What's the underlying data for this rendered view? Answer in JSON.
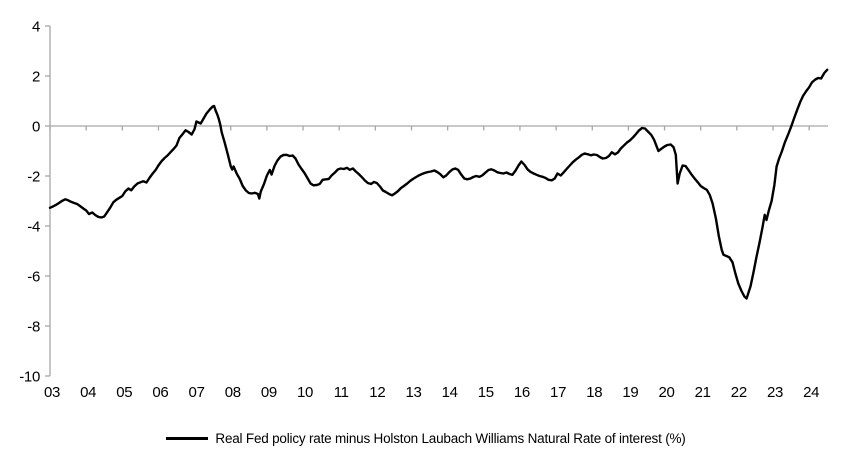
{
  "chart_data": {
    "type": "line",
    "title": "",
    "legend_label": "Real Fed policy rate minus Holston Laubach Williams Natural Rate of interest (%)",
    "legend_position": "bottom-center",
    "grid": false,
    "axis_color": "#a6a6a6",
    "line_color": "#000000",
    "text_color": "#000000",
    "x_axis": {
      "tick_labels": [
        "03",
        "04",
        "05",
        "06",
        "07",
        "08",
        "09",
        "10",
        "11",
        "12",
        "13",
        "14",
        "15",
        "16",
        "17",
        "18",
        "19",
        "20",
        "21",
        "22",
        "23",
        "24"
      ],
      "first_year": 2003,
      "range": [
        2003,
        2024.55
      ],
      "zero_line_is_axis": true
    },
    "y_axis": {
      "ticks": [
        4,
        2,
        0,
        -2,
        -4,
        -6,
        -8,
        -10
      ],
      "range": [
        -10,
        4
      ]
    },
    "series": [
      {
        "name": "Real Fed policy rate minus Holston Laubach Williams Natural Rate of interest (%)",
        "color": "#000000",
        "points": [
          [
            2003.0,
            -3.27
          ],
          [
            2003.08,
            -3.22
          ],
          [
            2003.17,
            -3.15
          ],
          [
            2003.25,
            -3.08
          ],
          [
            2003.33,
            -3.0
          ],
          [
            2003.42,
            -2.93
          ],
          [
            2003.5,
            -2.97
          ],
          [
            2003.58,
            -3.03
          ],
          [
            2003.67,
            -3.08
          ],
          [
            2003.75,
            -3.12
          ],
          [
            2003.83,
            -3.2
          ],
          [
            2003.92,
            -3.3
          ],
          [
            2004.0,
            -3.38
          ],
          [
            2004.08,
            -3.52
          ],
          [
            2004.17,
            -3.46
          ],
          [
            2004.25,
            -3.56
          ],
          [
            2004.33,
            -3.63
          ],
          [
            2004.42,
            -3.66
          ],
          [
            2004.5,
            -3.62
          ],
          [
            2004.58,
            -3.45
          ],
          [
            2004.67,
            -3.25
          ],
          [
            2004.75,
            -3.05
          ],
          [
            2004.83,
            -2.95
          ],
          [
            2004.92,
            -2.87
          ],
          [
            2005.0,
            -2.8
          ],
          [
            2005.08,
            -2.62
          ],
          [
            2005.17,
            -2.5
          ],
          [
            2005.25,
            -2.57
          ],
          [
            2005.33,
            -2.42
          ],
          [
            2005.42,
            -2.3
          ],
          [
            2005.5,
            -2.25
          ],
          [
            2005.58,
            -2.21
          ],
          [
            2005.67,
            -2.26
          ],
          [
            2005.75,
            -2.08
          ],
          [
            2005.83,
            -1.92
          ],
          [
            2005.92,
            -1.76
          ],
          [
            2006.0,
            -1.58
          ],
          [
            2006.08,
            -1.42
          ],
          [
            2006.17,
            -1.28
          ],
          [
            2006.25,
            -1.18
          ],
          [
            2006.33,
            -1.05
          ],
          [
            2006.42,
            -0.92
          ],
          [
            2006.5,
            -0.78
          ],
          [
            2006.58,
            -0.48
          ],
          [
            2006.67,
            -0.32
          ],
          [
            2006.75,
            -0.17
          ],
          [
            2006.83,
            -0.24
          ],
          [
            2006.92,
            -0.34
          ],
          [
            2007.0,
            -0.12
          ],
          [
            2007.05,
            0.18
          ],
          [
            2007.17,
            0.1
          ],
          [
            2007.25,
            0.3
          ],
          [
            2007.33,
            0.5
          ],
          [
            2007.42,
            0.66
          ],
          [
            2007.5,
            0.78
          ],
          [
            2007.54,
            0.8
          ],
          [
            2007.58,
            0.62
          ],
          [
            2007.63,
            0.45
          ],
          [
            2007.67,
            0.28
          ],
          [
            2007.71,
            0.05
          ],
          [
            2007.75,
            -0.25
          ],
          [
            2007.83,
            -0.65
          ],
          [
            2007.92,
            -1.15
          ],
          [
            2008.0,
            -1.62
          ],
          [
            2008.04,
            -1.74
          ],
          [
            2008.08,
            -1.62
          ],
          [
            2008.17,
            -1.92
          ],
          [
            2008.25,
            -2.12
          ],
          [
            2008.33,
            -2.4
          ],
          [
            2008.42,
            -2.58
          ],
          [
            2008.5,
            -2.68
          ],
          [
            2008.58,
            -2.7
          ],
          [
            2008.67,
            -2.67
          ],
          [
            2008.75,
            -2.72
          ],
          [
            2008.79,
            -2.9
          ],
          [
            2008.83,
            -2.62
          ],
          [
            2008.92,
            -2.32
          ],
          [
            2009.0,
            -1.98
          ],
          [
            2009.08,
            -1.76
          ],
          [
            2009.13,
            -1.94
          ],
          [
            2009.21,
            -1.6
          ],
          [
            2009.29,
            -1.38
          ],
          [
            2009.38,
            -1.22
          ],
          [
            2009.46,
            -1.16
          ],
          [
            2009.54,
            -1.15
          ],
          [
            2009.63,
            -1.2
          ],
          [
            2009.71,
            -1.18
          ],
          [
            2009.79,
            -1.3
          ],
          [
            2009.88,
            -1.55
          ],
          [
            2009.96,
            -1.72
          ],
          [
            2010.04,
            -1.88
          ],
          [
            2010.13,
            -2.1
          ],
          [
            2010.21,
            -2.3
          ],
          [
            2010.29,
            -2.37
          ],
          [
            2010.38,
            -2.36
          ],
          [
            2010.46,
            -2.32
          ],
          [
            2010.54,
            -2.15
          ],
          [
            2010.63,
            -2.13
          ],
          [
            2010.71,
            -2.12
          ],
          [
            2010.79,
            -1.98
          ],
          [
            2010.88,
            -1.86
          ],
          [
            2010.96,
            -1.74
          ],
          [
            2011.04,
            -1.7
          ],
          [
            2011.13,
            -1.72
          ],
          [
            2011.21,
            -1.67
          ],
          [
            2011.29,
            -1.75
          ],
          [
            2011.38,
            -1.7
          ],
          [
            2011.46,
            -1.82
          ],
          [
            2011.54,
            -1.92
          ],
          [
            2011.63,
            -2.05
          ],
          [
            2011.71,
            -2.18
          ],
          [
            2011.79,
            -2.28
          ],
          [
            2011.88,
            -2.32
          ],
          [
            2011.96,
            -2.24
          ],
          [
            2012.04,
            -2.28
          ],
          [
            2012.13,
            -2.42
          ],
          [
            2012.21,
            -2.58
          ],
          [
            2012.29,
            -2.64
          ],
          [
            2012.38,
            -2.72
          ],
          [
            2012.46,
            -2.77
          ],
          [
            2012.54,
            -2.7
          ],
          [
            2012.63,
            -2.6
          ],
          [
            2012.71,
            -2.48
          ],
          [
            2012.79,
            -2.4
          ],
          [
            2012.88,
            -2.3
          ],
          [
            2012.96,
            -2.2
          ],
          [
            2013.04,
            -2.12
          ],
          [
            2013.13,
            -2.04
          ],
          [
            2013.21,
            -1.97
          ],
          [
            2013.29,
            -1.92
          ],
          [
            2013.38,
            -1.87
          ],
          [
            2013.46,
            -1.84
          ],
          [
            2013.54,
            -1.82
          ],
          [
            2013.63,
            -1.78
          ],
          [
            2013.71,
            -1.84
          ],
          [
            2013.79,
            -1.92
          ],
          [
            2013.88,
            -2.05
          ],
          [
            2013.96,
            -1.98
          ],
          [
            2014.04,
            -1.85
          ],
          [
            2014.13,
            -1.74
          ],
          [
            2014.21,
            -1.7
          ],
          [
            2014.29,
            -1.75
          ],
          [
            2014.38,
            -1.95
          ],
          [
            2014.46,
            -2.1
          ],
          [
            2014.54,
            -2.13
          ],
          [
            2014.63,
            -2.1
          ],
          [
            2014.71,
            -2.04
          ],
          [
            2014.79,
            -2.0
          ],
          [
            2014.88,
            -2.03
          ],
          [
            2014.96,
            -1.97
          ],
          [
            2015.04,
            -1.87
          ],
          [
            2015.13,
            -1.76
          ],
          [
            2015.21,
            -1.73
          ],
          [
            2015.29,
            -1.78
          ],
          [
            2015.38,
            -1.85
          ],
          [
            2015.46,
            -1.88
          ],
          [
            2015.54,
            -1.9
          ],
          [
            2015.63,
            -1.86
          ],
          [
            2015.71,
            -1.92
          ],
          [
            2015.79,
            -1.95
          ],
          [
            2015.88,
            -1.78
          ],
          [
            2015.96,
            -1.58
          ],
          [
            2016.04,
            -1.42
          ],
          [
            2016.13,
            -1.56
          ],
          [
            2016.21,
            -1.73
          ],
          [
            2016.29,
            -1.83
          ],
          [
            2016.38,
            -1.9
          ],
          [
            2016.46,
            -1.95
          ],
          [
            2016.54,
            -2.0
          ],
          [
            2016.63,
            -2.03
          ],
          [
            2016.71,
            -2.08
          ],
          [
            2016.79,
            -2.15
          ],
          [
            2016.88,
            -2.17
          ],
          [
            2016.96,
            -2.1
          ],
          [
            2017.04,
            -1.9
          ],
          [
            2017.13,
            -1.98
          ],
          [
            2017.21,
            -1.85
          ],
          [
            2017.29,
            -1.72
          ],
          [
            2017.38,
            -1.58
          ],
          [
            2017.46,
            -1.45
          ],
          [
            2017.54,
            -1.35
          ],
          [
            2017.63,
            -1.25
          ],
          [
            2017.71,
            -1.15
          ],
          [
            2017.79,
            -1.1
          ],
          [
            2017.88,
            -1.13
          ],
          [
            2017.96,
            -1.17
          ],
          [
            2018.04,
            -1.14
          ],
          [
            2018.13,
            -1.16
          ],
          [
            2018.21,
            -1.24
          ],
          [
            2018.29,
            -1.3
          ],
          [
            2018.38,
            -1.28
          ],
          [
            2018.46,
            -1.2
          ],
          [
            2018.54,
            -1.05
          ],
          [
            2018.63,
            -1.13
          ],
          [
            2018.71,
            -1.06
          ],
          [
            2018.79,
            -0.9
          ],
          [
            2018.88,
            -0.77
          ],
          [
            2018.96,
            -0.66
          ],
          [
            2019.04,
            -0.58
          ],
          [
            2019.13,
            -0.45
          ],
          [
            2019.21,
            -0.32
          ],
          [
            2019.29,
            -0.18
          ],
          [
            2019.38,
            -0.08
          ],
          [
            2019.46,
            -0.1
          ],
          [
            2019.54,
            -0.22
          ],
          [
            2019.63,
            -0.35
          ],
          [
            2019.71,
            -0.55
          ],
          [
            2019.79,
            -0.85
          ],
          [
            2019.83,
            -1.0
          ],
          [
            2019.92,
            -0.9
          ],
          [
            2020.0,
            -0.82
          ],
          [
            2020.08,
            -0.76
          ],
          [
            2020.17,
            -0.74
          ],
          [
            2020.25,
            -0.85
          ],
          [
            2020.31,
            -1.15
          ],
          [
            2020.36,
            -2.3
          ],
          [
            2020.42,
            -1.9
          ],
          [
            2020.5,
            -1.58
          ],
          [
            2020.58,
            -1.6
          ],
          [
            2020.67,
            -1.78
          ],
          [
            2020.75,
            -1.95
          ],
          [
            2020.83,
            -2.1
          ],
          [
            2020.92,
            -2.25
          ],
          [
            2021.0,
            -2.4
          ],
          [
            2021.08,
            -2.48
          ],
          [
            2021.17,
            -2.55
          ],
          [
            2021.25,
            -2.75
          ],
          [
            2021.33,
            -3.1
          ],
          [
            2021.42,
            -3.7
          ],
          [
            2021.5,
            -4.4
          ],
          [
            2021.58,
            -4.95
          ],
          [
            2021.63,
            -5.15
          ],
          [
            2021.71,
            -5.2
          ],
          [
            2021.79,
            -5.25
          ],
          [
            2021.88,
            -5.45
          ],
          [
            2021.96,
            -5.9
          ],
          [
            2022.04,
            -6.3
          ],
          [
            2022.13,
            -6.6
          ],
          [
            2022.21,
            -6.82
          ],
          [
            2022.27,
            -6.9
          ],
          [
            2022.38,
            -6.4
          ],
          [
            2022.46,
            -5.85
          ],
          [
            2022.54,
            -5.25
          ],
          [
            2022.63,
            -4.65
          ],
          [
            2022.71,
            -4.05
          ],
          [
            2022.77,
            -3.55
          ],
          [
            2022.82,
            -3.76
          ],
          [
            2022.88,
            -3.4
          ],
          [
            2022.96,
            -3.0
          ],
          [
            2023.04,
            -2.35
          ],
          [
            2023.1,
            -1.62
          ],
          [
            2023.17,
            -1.3
          ],
          [
            2023.25,
            -1.0
          ],
          [
            2023.33,
            -0.65
          ],
          [
            2023.42,
            -0.33
          ],
          [
            2023.5,
            -0.03
          ],
          [
            2023.58,
            0.3
          ],
          [
            2023.67,
            0.65
          ],
          [
            2023.75,
            0.95
          ],
          [
            2023.83,
            1.2
          ],
          [
            2023.92,
            1.4
          ],
          [
            2024.0,
            1.55
          ],
          [
            2024.08,
            1.75
          ],
          [
            2024.17,
            1.86
          ],
          [
            2024.25,
            1.92
          ],
          [
            2024.33,
            1.9
          ],
          [
            2024.42,
            2.12
          ],
          [
            2024.5,
            2.25
          ]
        ]
      }
    ]
  }
}
